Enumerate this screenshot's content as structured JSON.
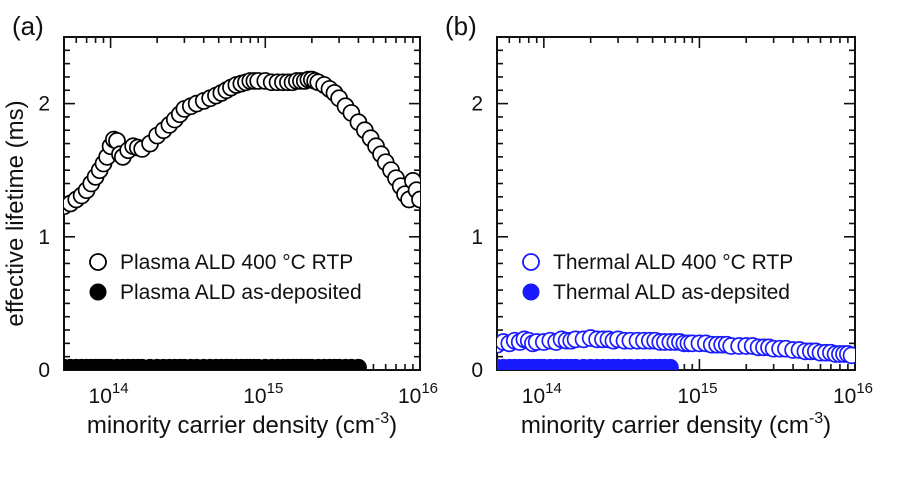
{
  "chart_data": [
    {
      "type": "scatter",
      "panel_label": "(a)",
      "xscale": "log",
      "xlim": [
        50000000000000.0,
        1e+16
      ],
      "ylim": [
        0,
        2.5
      ],
      "xlabel": "minority carrier density (cm",
      "xlabel_sup": "-3",
      "xlabel_end": ")",
      "ylabel": "effective lifetime (ms)",
      "y_ticks": [
        0,
        1,
        2
      ],
      "y_tick_labels": [
        "0",
        "1",
        "2"
      ],
      "x_ticks": [
        100000000000000.0,
        1000000000000000.0,
        1e+16
      ],
      "x_tick_labels": [
        {
          "base": "10",
          "exp": "14"
        },
        {
          "base": "10",
          "exp": "15"
        },
        {
          "base": "10",
          "exp": "16"
        }
      ],
      "legend_position": "center-left",
      "series": [
        {
          "name": "Plasma ALD 400 °C RTP",
          "marker": "open-circle",
          "color": "#000000",
          "x": [
            50000000000000.0,
            55000000000000.0,
            60000000000000.0,
            65000000000000.0,
            70000000000000.0,
            75000000000000.0,
            80000000000000.0,
            85000000000000.0,
            90000000000000.0,
            95000000000000.0,
            100000000000000.0,
            105000000000000.0,
            110000000000000.0,
            115000000000000.0,
            120000000000000.0,
            130000000000000.0,
            140000000000000.0,
            150000000000000.0,
            160000000000000.0,
            180000000000000.0,
            200000000000000.0,
            220000000000000.0,
            240000000000000.0,
            260000000000000.0,
            280000000000000.0,
            300000000000000.0,
            330000000000000.0,
            360000000000000.0,
            400000000000000.0,
            440000000000000.0,
            480000000000000.0,
            520000000000000.0,
            560000000000000.0,
            600000000000000.0,
            650000000000000.0,
            700000000000000.0,
            750000000000000.0,
            800000000000000.0,
            850000000000000.0,
            900000000000000.0,
            1000000000000000.0,
            1100000000000000.0,
            1200000000000000.0,
            1300000000000000.0,
            1400000000000000.0,
            1500000000000000.0,
            1600000000000000.0,
            1700000000000000.0,
            1800000000000000.0,
            1900000000000000.0,
            2000000000000000.0,
            2100000000000000.0,
            2200000000000000.0,
            2400000000000000.0,
            2600000000000000.0,
            2800000000000000.0,
            3000000000000000.0,
            3300000000000000.0,
            3600000000000000.0,
            4000000000000000.0,
            4400000000000000.0,
            4800000000000000.0,
            5200000000000000.0,
            5600000000000000.0,
            6000000000000000.0,
            6500000000000000.0,
            7000000000000000.0,
            7500000000000000.0,
            8000000000000000.0,
            8500000000000000.0,
            9000000000000000.0,
            9500000000000000.0,
            1e+16
          ],
          "y": [
            1.23,
            1.25,
            1.28,
            1.31,
            1.35,
            1.4,
            1.45,
            1.5,
            1.55,
            1.6,
            1.68,
            1.73,
            1.72,
            1.62,
            1.6,
            1.65,
            1.68,
            1.67,
            1.66,
            1.7,
            1.76,
            1.8,
            1.84,
            1.88,
            1.92,
            1.96,
            1.98,
            2.0,
            2.02,
            2.04,
            2.06,
            2.08,
            2.1,
            2.12,
            2.14,
            2.15,
            2.16,
            2.17,
            2.17,
            2.17,
            2.17,
            2.16,
            2.16,
            2.16,
            2.16,
            2.16,
            2.17,
            2.17,
            2.17,
            2.18,
            2.18,
            2.17,
            2.16,
            2.14,
            2.11,
            2.08,
            2.04,
            1.98,
            1.93,
            1.86,
            1.8,
            1.74,
            1.68,
            1.62,
            1.56,
            1.5,
            1.44,
            1.38,
            1.32,
            1.28,
            1.42,
            1.35,
            1.28
          ]
        },
        {
          "name": "Plasma ALD as-deposited",
          "marker": "filled-circle",
          "color": "#000000",
          "x": [
            50000000000000.0,
            55000000000000.0,
            60000000000000.0,
            65000000000000.0,
            70000000000000.0,
            75000000000000.0,
            80000000000000.0,
            85000000000000.0,
            90000000000000.0,
            95000000000000.0,
            100000000000000.0,
            110000000000000.0,
            120000000000000.0,
            130000000000000.0,
            140000000000000.0,
            150000000000000.0,
            160000000000000.0,
            180000000000000.0,
            200000000000000.0,
            220000000000000.0,
            240000000000000.0,
            260000000000000.0,
            280000000000000.0,
            300000000000000.0,
            330000000000000.0,
            360000000000000.0,
            400000000000000.0,
            440000000000000.0,
            480000000000000.0,
            520000000000000.0,
            560000000000000.0,
            600000000000000.0,
            650000000000000.0,
            700000000000000.0,
            750000000000000.0,
            800000000000000.0,
            850000000000000.0,
            900000000000000.0,
            1000000000000000.0,
            1100000000000000.0,
            1200000000000000.0,
            1300000000000000.0,
            1400000000000000.0,
            1500000000000000.0,
            1600000000000000.0,
            1700000000000000.0,
            1800000000000000.0,
            1900000000000000.0,
            2000000000000000.0,
            2200000000000000.0,
            2400000000000000.0,
            2600000000000000.0,
            2800000000000000.0,
            3000000000000000.0,
            3300000000000000.0,
            3600000000000000.0,
            4000000000000000.0
          ],
          "y": [
            0.02,
            0.02,
            0.02,
            0.02,
            0.02,
            0.02,
            0.02,
            0.02,
            0.02,
            0.02,
            0.02,
            0.02,
            0.02,
            0.02,
            0.02,
            0.02,
            0.02,
            0.02,
            0.02,
            0.02,
            0.02,
            0.02,
            0.02,
            0.02,
            0.02,
            0.02,
            0.02,
            0.02,
            0.02,
            0.02,
            0.02,
            0.02,
            0.02,
            0.02,
            0.02,
            0.02,
            0.02,
            0.02,
            0.02,
            0.02,
            0.02,
            0.02,
            0.02,
            0.02,
            0.02,
            0.02,
            0.02,
            0.02,
            0.02,
            0.02,
            0.02,
            0.02,
            0.02,
            0.02,
            0.02,
            0.02,
            0.02
          ]
        }
      ]
    },
    {
      "type": "scatter",
      "panel_label": "(b)",
      "xscale": "log",
      "xlim": [
        50000000000000.0,
        1e+16
      ],
      "ylim": [
        0,
        2.5
      ],
      "xlabel": "minority carrier density (cm",
      "xlabel_sup": "-3",
      "xlabel_end": ")",
      "ylabel": "",
      "y_ticks": [
        0,
        1,
        2
      ],
      "y_tick_labels": [
        "0",
        "1",
        "2"
      ],
      "x_ticks": [
        100000000000000.0,
        1000000000000000.0,
        1e+16
      ],
      "x_tick_labels": [
        {
          "base": "10",
          "exp": "14"
        },
        {
          "base": "10",
          "exp": "15"
        },
        {
          "base": "10",
          "exp": "16"
        }
      ],
      "legend_position": "center-left",
      "series": [
        {
          "name": "Thermal ALD 400 °C RTP",
          "marker": "open-circle",
          "color": "#1a1aff",
          "x": [
            50000000000000.0,
            55000000000000.0,
            60000000000000.0,
            65000000000000.0,
            70000000000000.0,
            75000000000000.0,
            80000000000000.0,
            85000000000000.0,
            90000000000000.0,
            100000000000000.0,
            110000000000000.0,
            120000000000000.0,
            130000000000000.0,
            140000000000000.0,
            150000000000000.0,
            160000000000000.0,
            180000000000000.0,
            200000000000000.0,
            220000000000000.0,
            240000000000000.0,
            260000000000000.0,
            280000000000000.0,
            300000000000000.0,
            330000000000000.0,
            360000000000000.0,
            400000000000000.0,
            440000000000000.0,
            480000000000000.0,
            520000000000000.0,
            560000000000000.0,
            600000000000000.0,
            650000000000000.0,
            700000000000000.0,
            750000000000000.0,
            800000000000000.0,
            850000000000000.0,
            900000000000000.0,
            1000000000000000.0,
            1100000000000000.0,
            1200000000000000.0,
            1300000000000000.0,
            1400000000000000.0,
            1500000000000000.0,
            1600000000000000.0,
            1800000000000000.0,
            2000000000000000.0,
            2200000000000000.0,
            2400000000000000.0,
            2600000000000000.0,
            2800000000000000.0,
            3000000000000000.0,
            3300000000000000.0,
            3600000000000000.0,
            4000000000000000.0,
            4400000000000000.0,
            4800000000000000.0,
            5200000000000000.0,
            5600000000000000.0,
            6000000000000000.0,
            6500000000000000.0,
            7000000000000000.0,
            7500000000000000.0,
            8000000000000000.0,
            8500000000000000.0,
            9000000000000000.0,
            9500000000000000.0
          ],
          "y": [
            0.19,
            0.21,
            0.2,
            0.22,
            0.21,
            0.23,
            0.22,
            0.2,
            0.21,
            0.21,
            0.22,
            0.21,
            0.23,
            0.22,
            0.22,
            0.23,
            0.23,
            0.24,
            0.23,
            0.23,
            0.23,
            0.22,
            0.23,
            0.22,
            0.22,
            0.22,
            0.22,
            0.22,
            0.22,
            0.21,
            0.21,
            0.21,
            0.21,
            0.21,
            0.2,
            0.2,
            0.2,
            0.2,
            0.2,
            0.19,
            0.19,
            0.19,
            0.19,
            0.18,
            0.18,
            0.18,
            0.18,
            0.17,
            0.17,
            0.17,
            0.16,
            0.16,
            0.16,
            0.15,
            0.15,
            0.14,
            0.14,
            0.14,
            0.13,
            0.13,
            0.13,
            0.12,
            0.12,
            0.12,
            0.12,
            0.11
          ]
        },
        {
          "name": "Thermal ALD as-depsited",
          "marker": "filled-circle",
          "color": "#1a1aff",
          "x": [
            50000000000000.0,
            55000000000000.0,
            60000000000000.0,
            65000000000000.0,
            70000000000000.0,
            75000000000000.0,
            80000000000000.0,
            85000000000000.0,
            90000000000000.0,
            95000000000000.0,
            100000000000000.0,
            110000000000000.0,
            120000000000000.0,
            130000000000000.0,
            140000000000000.0,
            150000000000000.0,
            160000000000000.0,
            180000000000000.0,
            200000000000000.0,
            220000000000000.0,
            240000000000000.0,
            260000000000000.0,
            280000000000000.0,
            300000000000000.0,
            330000000000000.0,
            360000000000000.0,
            400000000000000.0,
            440000000000000.0,
            480000000000000.0,
            520000000000000.0,
            560000000000000.0,
            600000000000000.0,
            650000000000000.0
          ],
          "y": [
            0.02,
            0.02,
            0.02,
            0.02,
            0.02,
            0.02,
            0.02,
            0.02,
            0.02,
            0.02,
            0.02,
            0.02,
            0.02,
            0.02,
            0.02,
            0.02,
            0.02,
            0.02,
            0.02,
            0.02,
            0.02,
            0.02,
            0.02,
            0.02,
            0.02,
            0.02,
            0.02,
            0.02,
            0.02,
            0.02,
            0.02,
            0.02,
            0.02
          ]
        }
      ]
    }
  ]
}
